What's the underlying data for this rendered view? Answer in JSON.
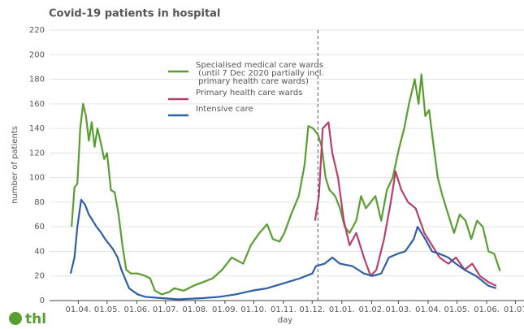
{
  "chart_data": {
    "type": "line",
    "title": "Covid-19 patients in hospital",
    "xlabel": "day",
    "ylabel": "number of patients",
    "logo": "thl",
    "xlim": [
      -30,
      465
    ],
    "ylim": [
      0,
      220
    ],
    "yticks": [
      0,
      20,
      40,
      60,
      80,
      100,
      120,
      140,
      160,
      180,
      200,
      220
    ],
    "xticks": [
      {
        "value": 0,
        "label": "01.04."
      },
      {
        "value": 30,
        "label": "01.05."
      },
      {
        "value": 61,
        "label": "01.06."
      },
      {
        "value": 91,
        "label": "01.07."
      },
      {
        "value": 122,
        "label": "01.08."
      },
      {
        "value": 153,
        "label": "01.09."
      },
      {
        "value": 183,
        "label": "01.10."
      },
      {
        "value": 214,
        "label": "01.11."
      },
      {
        "value": 244,
        "label": "01.12."
      },
      {
        "value": 275,
        "label": "01.01."
      },
      {
        "value": 306,
        "label": "01.02."
      },
      {
        "value": 334,
        "label": "01.03."
      },
      {
        "value": 365,
        "label": "01.04."
      },
      {
        "value": 395,
        "label": "01.05."
      },
      {
        "value": 426,
        "label": "01.06."
      },
      {
        "value": 456,
        "label": "01.07"
      }
    ],
    "grid": true,
    "vline": 250,
    "series": [
      {
        "name": "Specialised medical care wards\n (until 7 Dec 2020 partially incl.\n primary health care wards)",
        "color": "#5a9e32",
        "x": [
          -7,
          -4,
          -1,
          2,
          5,
          8,
          11,
          14,
          17,
          20,
          23,
          27,
          30,
          34,
          38,
          42,
          46,
          50,
          55,
          62,
          70,
          75,
          80,
          87,
          95,
          100,
          110,
          120,
          130,
          140,
          150,
          160,
          172,
          180,
          189,
          197,
          203,
          210,
          215,
          222,
          230,
          236,
          240,
          245,
          250,
          254,
          258,
          262,
          268,
          273,
          278,
          283,
          290,
          295,
          300,
          305,
          310,
          316,
          322,
          328,
          335,
          340,
          345,
          351,
          355,
          358,
          362,
          366,
          370,
          375,
          380,
          386,
          392,
          398,
          404,
          410,
          416,
          422,
          428,
          434,
          440
        ],
        "values": [
          60,
          92,
          95,
          140,
          160,
          150,
          130,
          145,
          125,
          140,
          130,
          115,
          120,
          90,
          88,
          70,
          45,
          25,
          22,
          22,
          20,
          18,
          8,
          5,
          7,
          10,
          8,
          12,
          15,
          18,
          25,
          35,
          30,
          45,
          55,
          62,
          50,
          48,
          55,
          70,
          85,
          110,
          142,
          140,
          135,
          125,
          100,
          90,
          85,
          75,
          60,
          55,
          65,
          85,
          75,
          80,
          85,
          65,
          90,
          100,
          125,
          140,
          160,
          180,
          160,
          184,
          150,
          155,
          130,
          100,
          85,
          70,
          55,
          70,
          65,
          50,
          65,
          60,
          40,
          38,
          24
        ]
      },
      {
        "name": "Primary health care wards",
        "color": "#b5406e",
        "x": [
          247,
          251,
          255,
          261,
          265,
          271,
          277,
          283,
          290,
          298,
          305,
          311,
          319,
          326,
          331,
          337,
          344,
          352,
          361,
          369,
          377,
          386,
          394,
          403,
          411,
          419,
          428,
          436
        ],
        "values": [
          65,
          85,
          140,
          145,
          120,
          100,
          65,
          45,
          55,
          35,
          20,
          25,
          50,
          80,
          105,
          90,
          80,
          75,
          55,
          45,
          35,
          30,
          35,
          25,
          30,
          20,
          15,
          12
        ]
      },
      {
        "name": "Intensive care",
        "color": "#2e5ea8",
        "x": [
          -8,
          -4,
          -1,
          3,
          7,
          11,
          15,
          19,
          24,
          28,
          36,
          41,
          45,
          53,
          62,
          70,
          87,
          104,
          130,
          147,
          164,
          181,
          197,
          214,
          231,
          244,
          248,
          257,
          265,
          273,
          286,
          298,
          307,
          316,
          324,
          333,
          341,
          350,
          354,
          362,
          369,
          377,
          386,
          394,
          403,
          415,
          428,
          436
        ],
        "values": [
          22,
          35,
          60,
          82,
          78,
          70,
          65,
          60,
          55,
          50,
          42,
          35,
          25,
          10,
          5,
          3,
          2,
          1,
          2,
          3,
          5,
          8,
          10,
          14,
          18,
          22,
          28,
          30,
          35,
          30,
          28,
          22,
          20,
          22,
          35,
          38,
          40,
          50,
          60,
          50,
          40,
          38,
          35,
          30,
          25,
          20,
          12,
          10
        ]
      }
    ]
  }
}
